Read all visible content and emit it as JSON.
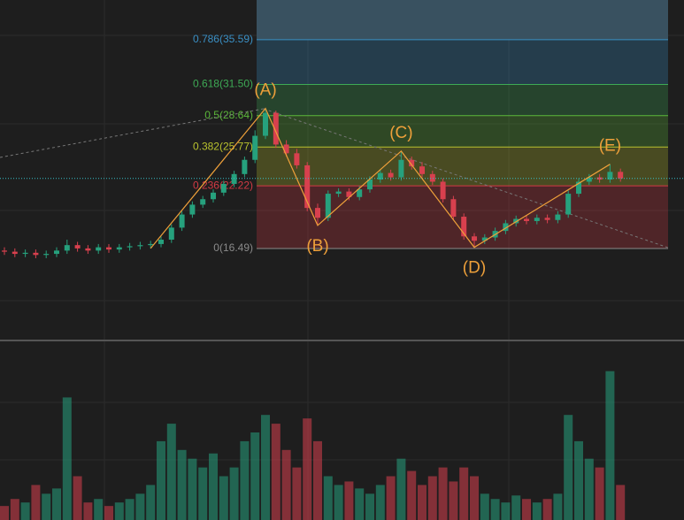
{
  "chart_data": {
    "type": "candlestick",
    "open": [
      16.3,
      16.2,
      16.0,
      16.1,
      15.9,
      16.0,
      16.3,
      16.8,
      16.5,
      16.3,
      16.6,
      16.4,
      16.6,
      16.7,
      16.8,
      16.9,
      17.3,
      18.4,
      19.6,
      20.5,
      21.0,
      21.6,
      22.4,
      23.3,
      24.6,
      26.8,
      28.9,
      26.0,
      25.2,
      24.1,
      20.2,
      19.3,
      21.5,
      21.7,
      21.2,
      21.9,
      22.8,
      23.4,
      23.0,
      24.6,
      24.0,
      23.3,
      22.6,
      21.0,
      19.4,
      17.6,
      17.2,
      17.5,
      18.1,
      18.8,
      19.2,
      19.0,
      19.3,
      19.1,
      19.6,
      21.5,
      22.6,
      23.0,
      22.8,
      23.5
    ],
    "high": [
      16.6,
      16.5,
      16.4,
      16.4,
      16.3,
      16.6,
      17.3,
      17.1,
      16.8,
      16.9,
      16.9,
      16.9,
      17.0,
      17.1,
      17.2,
      17.6,
      18.7,
      19.9,
      20.8,
      21.3,
      21.9,
      22.7,
      23.6,
      24.9,
      27.3,
      29.3,
      29.1,
      26.4,
      25.6,
      24.4,
      20.6,
      21.8,
      22.0,
      22.0,
      22.2,
      23.1,
      23.7,
      23.7,
      25.4,
      24.9,
      24.4,
      23.6,
      22.9,
      21.3,
      19.7,
      17.9,
      17.8,
      18.4,
      19.1,
      19.5,
      19.5,
      19.6,
      19.6,
      19.9,
      21.8,
      22.9,
      23.3,
      23.3,
      24.2,
      23.8
    ],
    "low": [
      15.9,
      15.7,
      15.7,
      15.6,
      15.6,
      15.7,
      16.0,
      16.2,
      16.0,
      16.0,
      16.1,
      16.1,
      16.3,
      16.4,
      16.5,
      16.6,
      17.0,
      18.1,
      19.3,
      20.2,
      20.7,
      21.3,
      22.1,
      23.0,
      24.3,
      26.5,
      25.7,
      24.9,
      23.8,
      19.9,
      18.6,
      19.0,
      21.2,
      20.9,
      20.9,
      21.6,
      22.5,
      22.7,
      22.7,
      23.7,
      23.0,
      22.3,
      20.7,
      19.1,
      17.3,
      16.6,
      16.9,
      17.2,
      17.8,
      18.5,
      18.7,
      18.7,
      18.8,
      18.8,
      19.3,
      21.2,
      22.3,
      22.5,
      22.5,
      22.6
    ],
    "close": [
      16.2,
      16.0,
      16.1,
      15.9,
      16.0,
      16.3,
      16.8,
      16.5,
      16.3,
      16.6,
      16.4,
      16.6,
      16.7,
      16.8,
      16.9,
      17.3,
      18.4,
      19.6,
      20.5,
      21.0,
      21.6,
      22.4,
      23.3,
      24.6,
      26.8,
      28.9,
      26.0,
      25.2,
      24.1,
      20.2,
      19.3,
      21.5,
      21.7,
      21.2,
      21.9,
      22.8,
      23.4,
      23.0,
      24.6,
      24.0,
      23.3,
      22.6,
      21.0,
      19.4,
      17.6,
      17.2,
      17.5,
      18.1,
      18.8,
      19.2,
      19.0,
      19.3,
      19.1,
      19.6,
      21.5,
      22.6,
      23.0,
      22.8,
      23.5,
      22.9
    ],
    "volume": [
      8,
      12,
      10,
      20,
      15,
      18,
      70,
      25,
      10,
      12,
      8,
      10,
      12,
      15,
      20,
      45,
      55,
      40,
      35,
      30,
      38,
      25,
      30,
      45,
      50,
      60,
      55,
      40,
      30,
      58,
      45,
      25,
      20,
      22,
      18,
      15,
      20,
      25,
      35,
      28,
      20,
      25,
      30,
      22,
      30,
      25,
      15,
      12,
      10,
      14,
      12,
      10,
      12,
      15,
      60,
      45,
      35,
      30,
      85,
      20
    ],
    "up_color": "#26a17d",
    "down_color": "#d8404e",
    "ylim": [
      8.24,
      39.22
    ],
    "volume_ylim": [
      0,
      100
    ],
    "fib_levels": [
      {
        "label": "0(16.49)",
        "value": 16.49,
        "color": "#8a8a8a"
      },
      {
        "label": "0.236(22.22)",
        "value": 22.22,
        "color": "#d23a44"
      },
      {
        "label": "0.382(25.77)",
        "value": 25.77,
        "color": "#b9c22e"
      },
      {
        "label": "0.5(28.64)",
        "value": 28.64,
        "color": "#5cb83a"
      },
      {
        "label": "0.618(31.50)",
        "value": 31.5,
        "color": "#3eaa55"
      },
      {
        "label": "0.786(35.59)",
        "value": 35.59,
        "color": "#3a8fc4"
      }
    ],
    "wave": {
      "labels": [
        null,
        "(A)",
        "(B)",
        "(C)",
        "(D)",
        "(E)"
      ],
      "x": [
        14,
        25,
        30,
        38,
        45,
        58
      ],
      "values": [
        16.5,
        29.3,
        18.6,
        25.4,
        16.6,
        24.2
      ],
      "color": "#eea03a"
    }
  }
}
